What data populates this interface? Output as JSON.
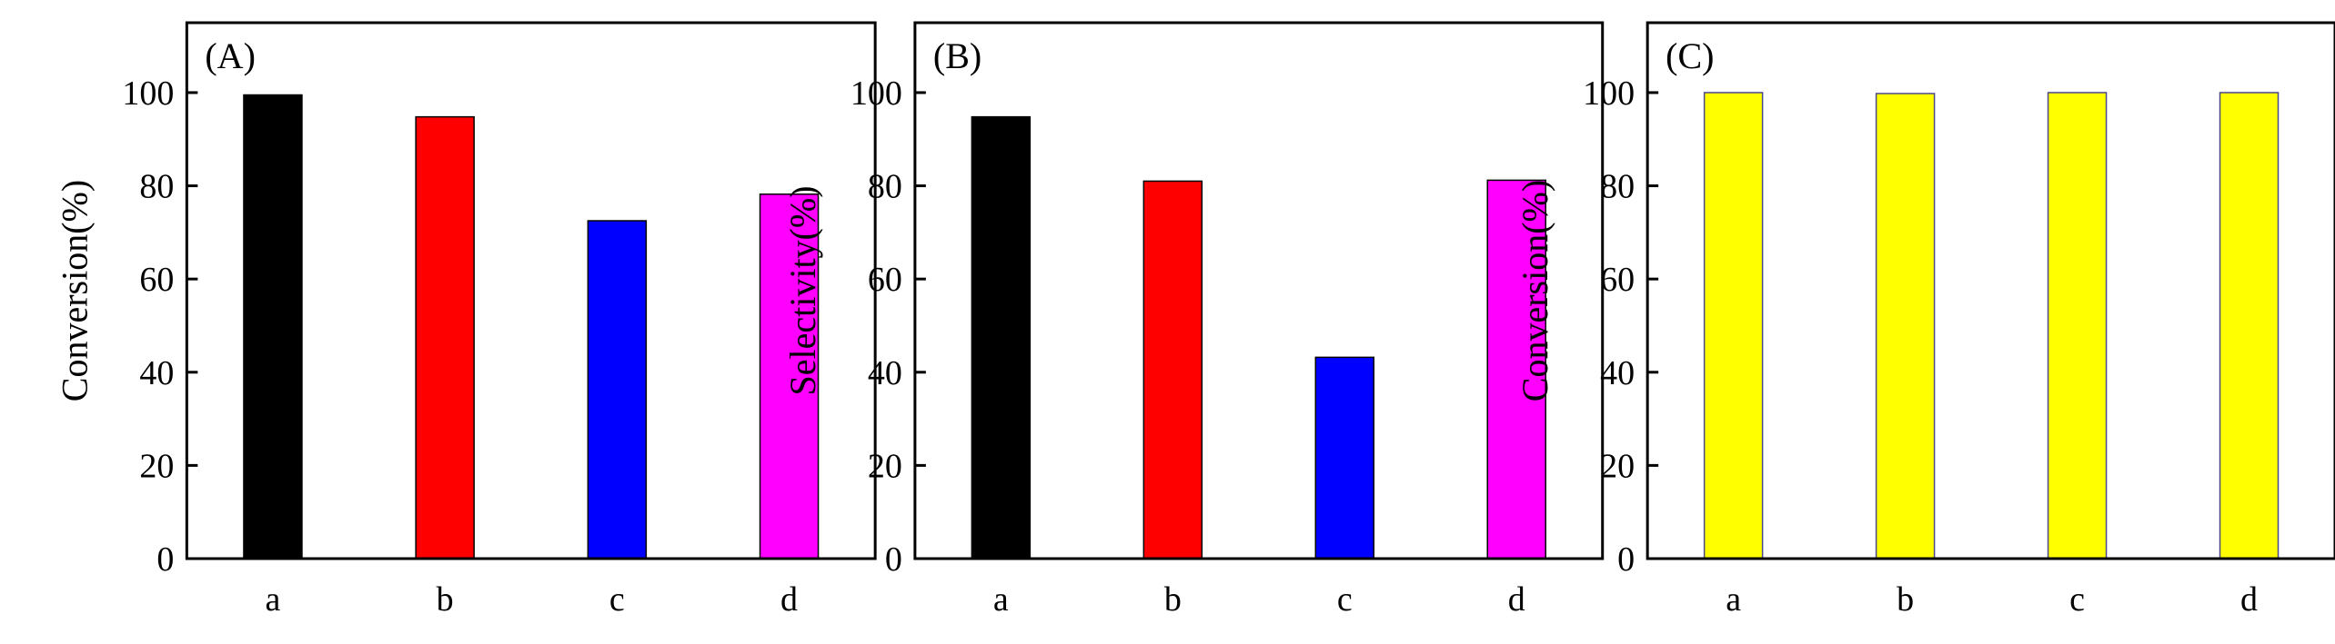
{
  "chart_data": [
    {
      "type": "bar",
      "panel_label": "(A)",
      "title": "",
      "xlabel": "",
      "ylabel": "Conversion(%)",
      "categories": [
        "a",
        "b",
        "c",
        "d"
      ],
      "values": [
        99.5,
        94.8,
        72.5,
        78.2
      ],
      "colors": [
        "#000000",
        "#ff0000",
        "#0000ff",
        "#ff00ff"
      ],
      "ylim": [
        0,
        115
      ],
      "yticks": [
        0,
        20,
        40,
        60,
        80,
        100
      ],
      "grid": false,
      "legend": "none"
    },
    {
      "type": "bar",
      "panel_label": "(B)",
      "title": "",
      "xlabel": "",
      "ylabel": "Selectivity(%)",
      "categories": [
        "a",
        "b",
        "c",
        "d"
      ],
      "values": [
        94.8,
        81.0,
        43.2,
        81.2
      ],
      "colors": [
        "#000000",
        "#ff0000",
        "#0000ff",
        "#ff00ff"
      ],
      "ylim": [
        0,
        115
      ],
      "yticks": [
        0,
        20,
        40,
        60,
        80,
        100
      ],
      "grid": false,
      "legend": "none"
    },
    {
      "type": "bar",
      "panel_label": "(C)",
      "title": "",
      "xlabel": "",
      "ylabel": "Conversion(%)",
      "categories": [
        "a",
        "b",
        "c",
        "d"
      ],
      "values": [
        100,
        99.8,
        100,
        100
      ],
      "colors": [
        "#ffff00",
        "#ffff00",
        "#ffff00",
        "#ffff00"
      ],
      "ylim": [
        0,
        115
      ],
      "yticks": [
        0,
        20,
        40,
        60,
        80,
        100
      ],
      "grid": false,
      "legend": "none"
    }
  ]
}
